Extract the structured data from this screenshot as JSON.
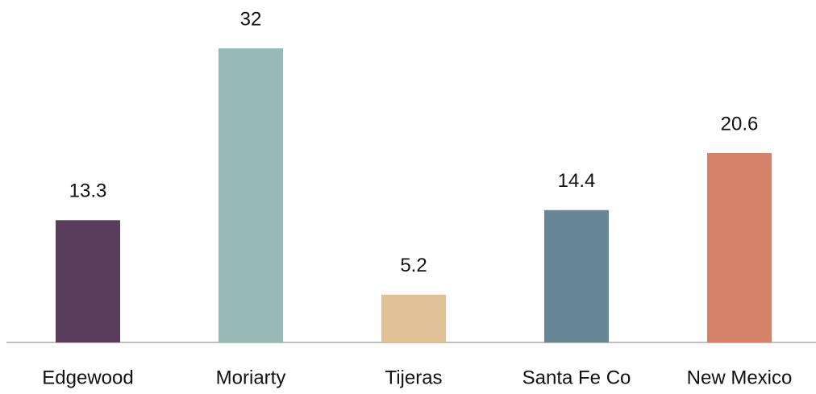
{
  "chart_data": {
    "type": "bar",
    "categories": [
      "Edgewood",
      "Moriarty",
      "Tijeras",
      "Santa Fe Co",
      "New Mexico"
    ],
    "values": [
      13.3,
      32,
      5.2,
      14.4,
      20.6
    ],
    "colors": [
      "#5a3d5c",
      "#97bab7",
      "#e2c196",
      "#678797",
      "#d6826a"
    ]
  }
}
